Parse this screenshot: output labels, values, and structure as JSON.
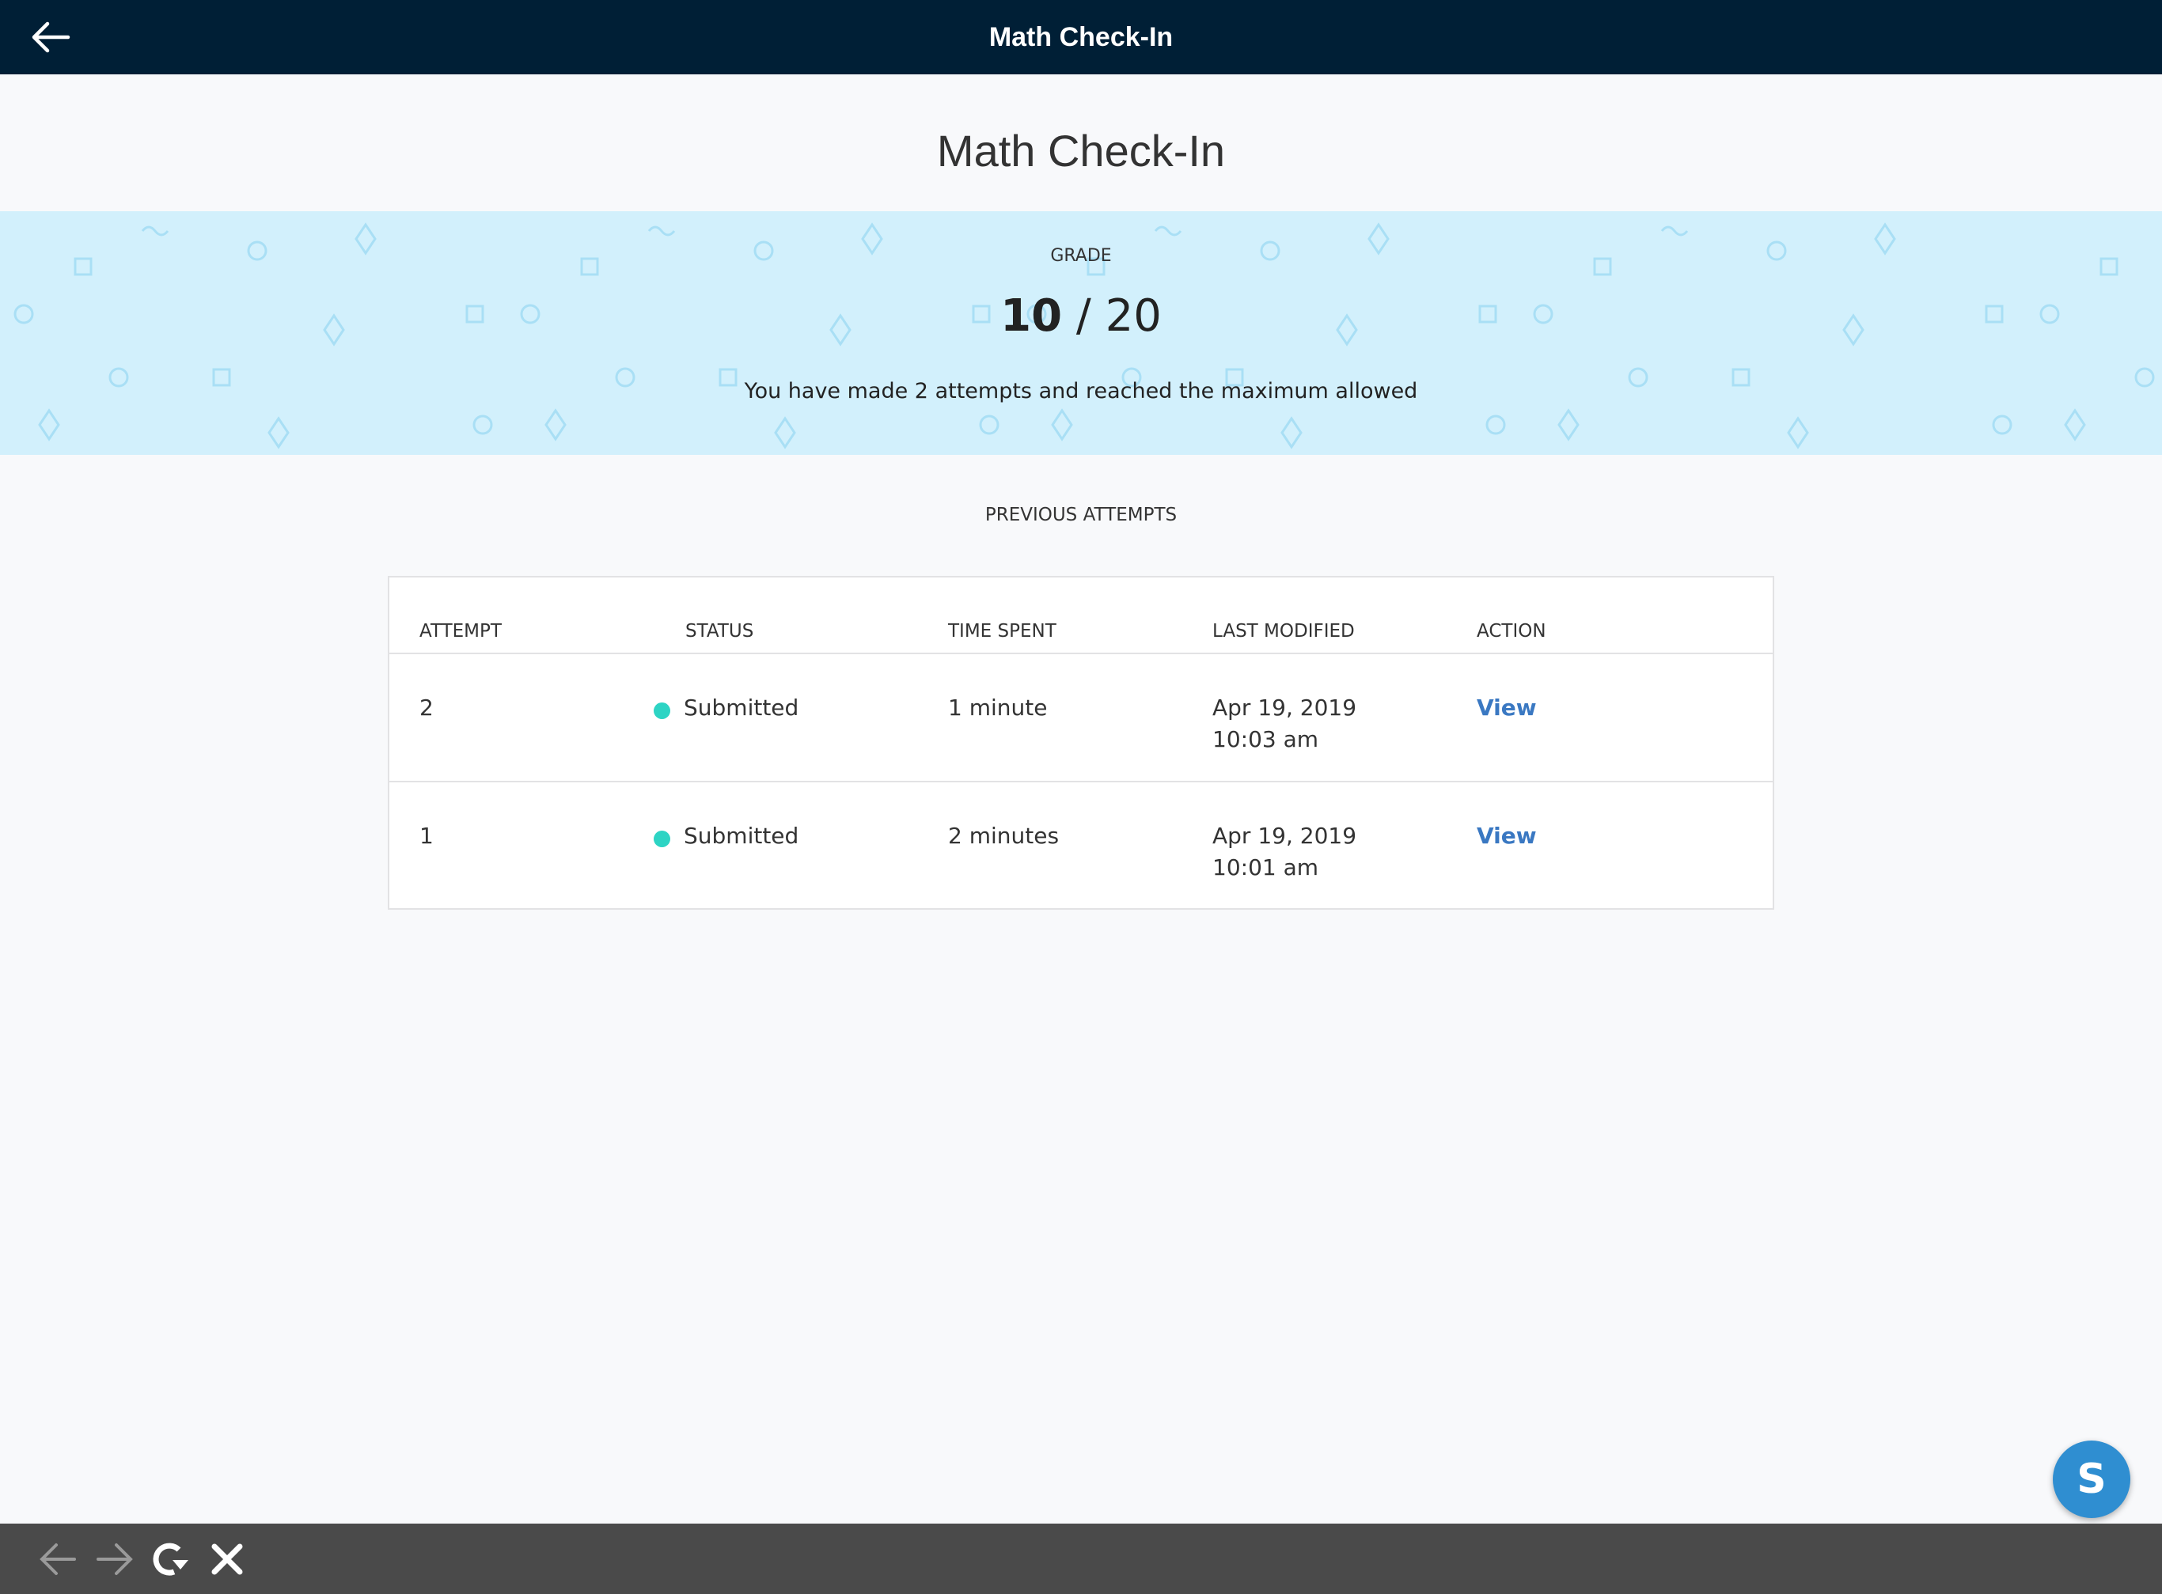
{
  "header": {
    "title": "Math Check-In",
    "back_icon": "arrow-left-icon"
  },
  "page_title": "Math Check-In",
  "grade": {
    "label": "GRADE",
    "score": "10",
    "separator": "/",
    "total": "20",
    "message": "You have made 2 attempts and reached the maximum allowed"
  },
  "attempts": {
    "title": "PREVIOUS ATTEMPTS",
    "columns": [
      "ATTEMPT",
      "STATUS",
      "TIME SPENT",
      "LAST MODIFIED",
      "ACTION"
    ],
    "rows": [
      {
        "attempt": "2",
        "status": "Submitted",
        "time_spent": "1 minute",
        "date": "Apr 19, 2019",
        "time": "10:03 am",
        "action": "View"
      },
      {
        "attempt": "1",
        "status": "Submitted",
        "time_spent": "2 minutes",
        "date": "Apr 19, 2019",
        "time": "10:01 am",
        "action": "View"
      }
    ]
  },
  "colors": {
    "header_bg": "#001f36",
    "banner_bg": "#d2f0fc",
    "status_submitted": "#2dd4c4",
    "link": "#3a78c2",
    "avatar_bg": "#2f8ed1"
  },
  "avatar": {
    "initial": "S"
  },
  "browser_bar": {
    "icons": [
      "back-arrow-icon",
      "forward-arrow-icon",
      "reload-icon",
      "close-icon"
    ]
  }
}
